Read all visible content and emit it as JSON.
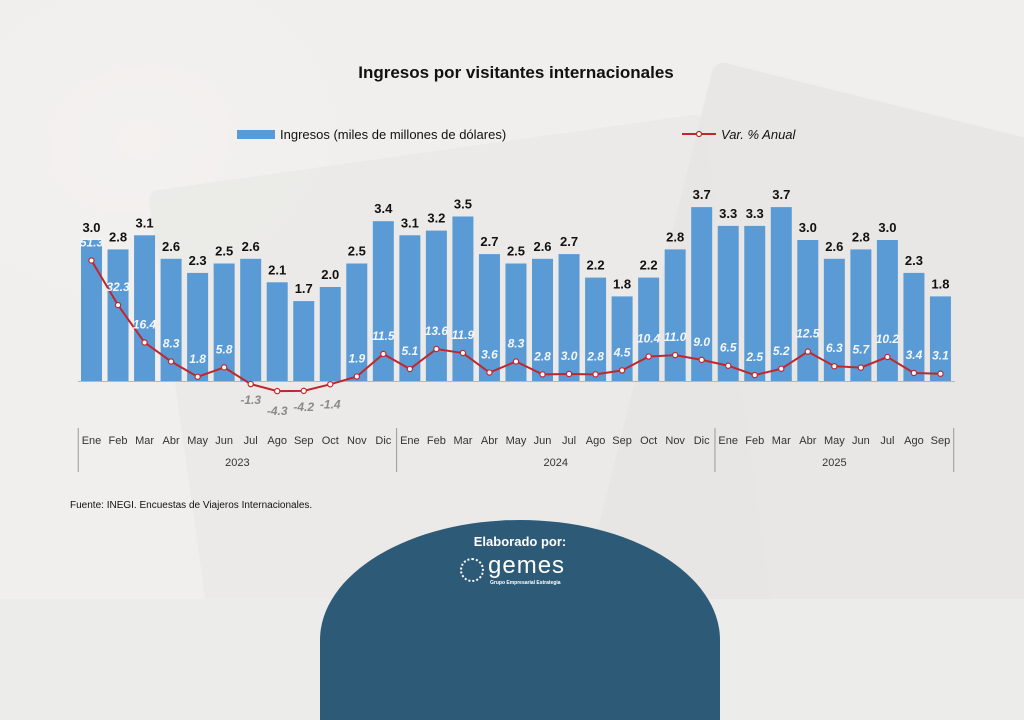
{
  "chart_data": {
    "type": "bar",
    "title": "Ingresos por visitantes internacionales",
    "xlabel": "",
    "ylabel": "",
    "categories": [
      "Ene",
      "Feb",
      "Mar",
      "Abr",
      "May",
      "Jun",
      "Jul",
      "Ago",
      "Sep",
      "Oct",
      "Nov",
      "Dic",
      "Ene",
      "Feb",
      "Mar",
      "Abr",
      "May",
      "Jun",
      "Jul",
      "Ago",
      "Sep",
      "Oct",
      "Nov",
      "Dic",
      "Ene",
      "Feb",
      "Mar",
      "Abr",
      "May",
      "Jun",
      "Jul",
      "Ago",
      "Sep"
    ],
    "years": [
      {
        "label": "2023",
        "count": 12
      },
      {
        "label": "2024",
        "count": 12
      },
      {
        "label": "2025",
        "count": 9
      }
    ],
    "series": [
      {
        "name": "Ingresos (miles de millones de dólares)",
        "type": "bar",
        "color": "#5b9bd5",
        "values": [
          3.0,
          2.8,
          3.1,
          2.6,
          2.3,
          2.5,
          2.6,
          2.1,
          1.7,
          2.0,
          2.5,
          3.4,
          3.1,
          3.2,
          3.5,
          2.7,
          2.5,
          2.6,
          2.7,
          2.2,
          1.8,
          2.2,
          2.8,
          3.7,
          3.3,
          3.3,
          3.7,
          3.0,
          2.6,
          2.8,
          3.0,
          2.3,
          1.8
        ]
      },
      {
        "name": "Var. % Anual",
        "type": "line",
        "color": "#c0272d",
        "values": [
          51.3,
          32.3,
          16.4,
          8.3,
          1.8,
          5.8,
          -1.3,
          -4.3,
          -4.2,
          -1.4,
          1.9,
          11.5,
          5.1,
          13.6,
          11.9,
          3.6,
          8.3,
          2.8,
          3.0,
          2.8,
          4.5,
          10.4,
          11.0,
          9.0,
          6.5,
          2.5,
          5.2,
          12.5,
          6.3,
          5.7,
          10.2,
          3.4,
          3.1
        ]
      }
    ],
    "legend": "top"
  },
  "footer": {
    "source": "Fuente: INEGI. Encuestas de Viajeros Internacionales.",
    "made_by": "Elaborado por:",
    "logo_word": "gemes",
    "logo_tagline": "Grupo Empresarial Estrategia"
  }
}
